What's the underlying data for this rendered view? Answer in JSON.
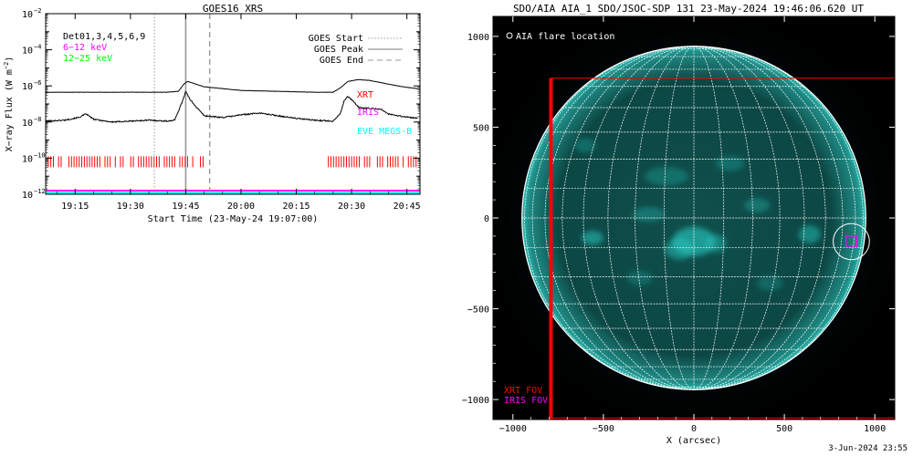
{
  "colors": {
    "xrt": "#ff0000",
    "iris": "#ff00ff",
    "eve": "#00ffff",
    "low_channel": "#ff00ff",
    "high_channel": "#00ff00",
    "text": "#000000",
    "limb_grid": "#ffffff",
    "disk_teal": "#26c4bb"
  },
  "chart_data": [
    {
      "type": "line",
      "title": "GOES16 XRS",
      "ylabel": "X-ray Flux (W m^-2)",
      "ylabel_parts": [
        "X−ray Flux (W m",
        "−2",
        ")"
      ],
      "xlabel": "Start Time (23-May-24 19:07:00)",
      "y_scale": "log",
      "ylim_exp": [
        -12,
        -2
      ],
      "y_ticks_exp": [
        -12,
        -10,
        -8,
        -6,
        -4,
        -2
      ],
      "xlim_min": [
        7,
        105
      ],
      "x_ticks": [
        {
          "label": "19:15",
          "min": 15
        },
        {
          "label": "19:30",
          "min": 30
        },
        {
          "label": "19:45",
          "min": 45
        },
        {
          "label": "20:00",
          "min": 60
        },
        {
          "label": "20:15",
          "min": 75
        },
        {
          "label": "20:30",
          "min": 90
        },
        {
          "label": "20:45",
          "min": 105
        }
      ],
      "detector_text": "Det01,3,4,5,6,9",
      "series": [
        {
          "name": "6-12 keV",
          "label": "6−12 keV",
          "color": "#000000",
          "t": [
            7,
            20,
            30,
            40,
            43,
            44.5,
            45.5,
            47,
            50,
            55,
            60,
            70,
            80,
            85,
            87,
            89,
            92,
            95,
            100,
            104,
            108
          ],
          "log_flux": [
            -6.35,
            -6.35,
            -6.35,
            -6.35,
            -6.3,
            -5.9,
            -5.75,
            -5.85,
            -6.05,
            -6.15,
            -6.25,
            -6.3,
            -6.35,
            -6.35,
            -6.1,
            -5.75,
            -5.65,
            -5.7,
            -5.9,
            -6.05,
            -6.15
          ]
        },
        {
          "name": "12-25 keV",
          "label": "12−25 keV",
          "color": "#000000",
          "t": [
            7,
            12,
            16,
            18,
            20,
            25,
            30,
            35,
            40,
            42,
            43,
            44,
            45,
            46,
            48,
            50,
            55,
            60,
            65,
            70,
            75,
            80,
            85,
            87,
            88,
            89,
            90,
            92,
            95,
            98,
            100,
            104,
            108
          ],
          "log_flux": [
            -7.95,
            -7.9,
            -7.75,
            -7.55,
            -7.85,
            -8.0,
            -7.95,
            -7.9,
            -7.95,
            -7.9,
            -7.4,
            -6.9,
            -6.3,
            -6.7,
            -7.2,
            -7.65,
            -7.75,
            -7.6,
            -7.5,
            -7.65,
            -7.8,
            -7.9,
            -7.95,
            -7.5,
            -6.8,
            -6.6,
            -6.75,
            -7.2,
            -7.25,
            -7.3,
            -7.55,
            -7.7,
            -7.8
          ]
        }
      ],
      "legend": [
        {
          "label": "GOES Start",
          "style": "dotted"
        },
        {
          "label": "GOES Peak",
          "style": "solid"
        },
        {
          "label": "GOES End",
          "style": "dashed"
        }
      ],
      "goes_start_min": 36.5,
      "goes_peak_min": 45,
      "goes_end_min": 51.5,
      "instrument_labels": {
        "xrt": "XRT",
        "iris": "IRIS",
        "eve": "EVE MEGS-B"
      },
      "xrt_coverage_y_exp": -10.2,
      "xrt_coverage_windows": [
        [
          7,
          50
        ],
        [
          83,
          108
        ]
      ],
      "iris_coverage_y_exp": -11.8,
      "eve_coverage_y_exp": -12.0
    },
    {
      "type": "heatmap",
      "title": "SDO/AIA AIA_1 SDO/JSOC-SDP 131 23-May-2024 19:46:06.620 UT",
      "xlabel": "X (arcsec)",
      "ylabel": "",
      "xlim": [
        -1110,
        1110
      ],
      "ylim": [
        -1110,
        1110
      ],
      "x_ticks": [
        -1000,
        -500,
        0,
        500,
        1000
      ],
      "y_ticks": [
        -1000,
        -500,
        0,
        500,
        1000
      ],
      "x_tick_labels": [
        "−1000",
        "−500",
        "0",
        "500",
        "1000"
      ],
      "y_tick_labels": [
        "−1000",
        "−500",
        "0",
        "500",
        "1000"
      ],
      "solar_radius_arcsec": 950,
      "grid_spacing_deg": 10,
      "flare_location_label": "AIA flare location",
      "flare_location": {
        "x": 870,
        "y": -130,
        "circle_r": 100
      },
      "xrt_fov": {
        "label": "XRT FOV",
        "x0": -790,
        "x1": 1110,
        "y0": -1110,
        "y1": 770
      },
      "iris_fov": {
        "label": "IRIS FOV",
        "x0": 840,
        "x1": 900,
        "y0": -160,
        "y1": -100
      },
      "active_regions": [
        {
          "x": 0,
          "y": -130,
          "w": 120,
          "h": 80,
          "a": 0.65
        },
        {
          "x": -80,
          "y": -170,
          "w": 80,
          "h": 60,
          "a": 0.5
        },
        {
          "x": 120,
          "y": -140,
          "w": 60,
          "h": 50,
          "a": 0.45
        },
        {
          "x": -560,
          "y": -110,
          "w": 60,
          "h": 40,
          "a": 0.55
        },
        {
          "x": 640,
          "y": -90,
          "w": 60,
          "h": 50,
          "a": 0.5
        },
        {
          "x": -250,
          "y": 20,
          "w": 90,
          "h": 40,
          "a": 0.35
        },
        {
          "x": 350,
          "y": 70,
          "w": 70,
          "h": 40,
          "a": 0.35
        },
        {
          "x": -150,
          "y": 230,
          "w": 120,
          "h": 50,
          "a": 0.3
        },
        {
          "x": 200,
          "y": 300,
          "w": 80,
          "h": 40,
          "a": 0.3
        },
        {
          "x": -600,
          "y": 400,
          "w": 60,
          "h": 40,
          "a": 0.3
        },
        {
          "x": -300,
          "y": -330,
          "w": 70,
          "h": 40,
          "a": 0.25
        },
        {
          "x": 420,
          "y": -360,
          "w": 70,
          "h": 40,
          "a": 0.25
        }
      ]
    }
  ],
  "footer": {
    "date": "3-Jun-2024 23:55"
  }
}
